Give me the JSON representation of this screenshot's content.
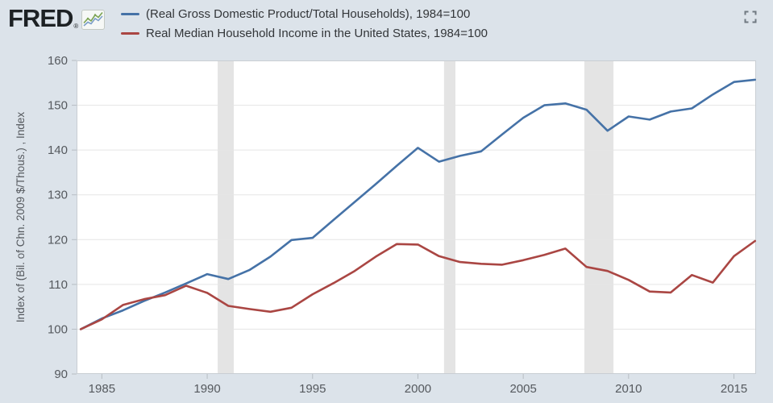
{
  "header": {
    "logo_text": "FRED",
    "logo_registered": "®"
  },
  "legend": {
    "items": [
      {
        "label": "(Real Gross Domestic Product/Total Households), 1984=100",
        "color": "#4572a7"
      },
      {
        "label": "Real Median Household Income in the United States, 1984=100",
        "color": "#aa4643"
      }
    ]
  },
  "colors": {
    "background": "#dce3ea",
    "plot_background": "#ffffff",
    "plot_border": "#c9ced3",
    "gridline": "#e5e5e5",
    "recession_band": "#e4e4e4",
    "tick": "#b7bdc3",
    "axis_text": "#55595e"
  },
  "chart_data": {
    "type": "line",
    "title": "",
    "xlabel": "",
    "ylabel": "Index of (Bil. of Chn. 2009 $/Thous.) , Index",
    "legend_position": "top",
    "grid": "horizontal",
    "ylim": [
      90,
      160
    ],
    "xlim": [
      1983.8,
      2016.05
    ],
    "y_ticks": [
      90,
      100,
      110,
      120,
      130,
      140,
      150,
      160
    ],
    "x_ticks": [
      1985,
      1990,
      1995,
      2000,
      2005,
      2010,
      2015
    ],
    "recession_bands": [
      [
        1990.5,
        1991.26
      ],
      [
        2001.24,
        2001.78
      ],
      [
        2007.9,
        2009.28
      ]
    ],
    "x": [
      1984,
      1985,
      1986,
      1987,
      1988,
      1989,
      1990,
      1991,
      1992,
      1993,
      1994,
      1995,
      1996,
      1997,
      1998,
      1999,
      2000,
      2001,
      2002,
      2003,
      2004,
      2005,
      2006,
      2007,
      2008,
      2009,
      2010,
      2011,
      2012,
      2013,
      2014,
      2015,
      2016
    ],
    "series": [
      {
        "name": "(Real Gross Domestic Product/Total Households), 1984=100",
        "color": "#4572a7",
        "values": [
          100,
          102.4,
          104.2,
          106.3,
          108.2,
          110.2,
          112.3,
          111.2,
          113.2,
          116.2,
          119.9,
          120.4,
          124.4,
          128.4,
          132.4,
          136.5,
          140.5,
          137.4,
          138.7,
          139.7,
          143.5,
          147.2,
          150.0,
          150.4,
          149.0,
          144.3,
          147.5,
          146.8,
          148.6,
          149.3,
          152.4,
          155.2,
          155.7
        ]
      },
      {
        "name": "Real Median Household Income in the United States, 1984=100",
        "color": "#aa4643",
        "values": [
          100,
          102.2,
          105.4,
          106.7,
          107.6,
          109.7,
          108.1,
          105.2,
          104.5,
          103.9,
          104.8,
          107.8,
          110.3,
          113.0,
          116.2,
          119.0,
          118.9,
          116.3,
          115.0,
          114.6,
          114.4,
          115.4,
          116.6,
          118.0,
          113.9,
          113.0,
          111.0,
          108.4,
          108.2,
          112.1,
          110.4,
          116.3,
          119.7
        ]
      }
    ]
  }
}
